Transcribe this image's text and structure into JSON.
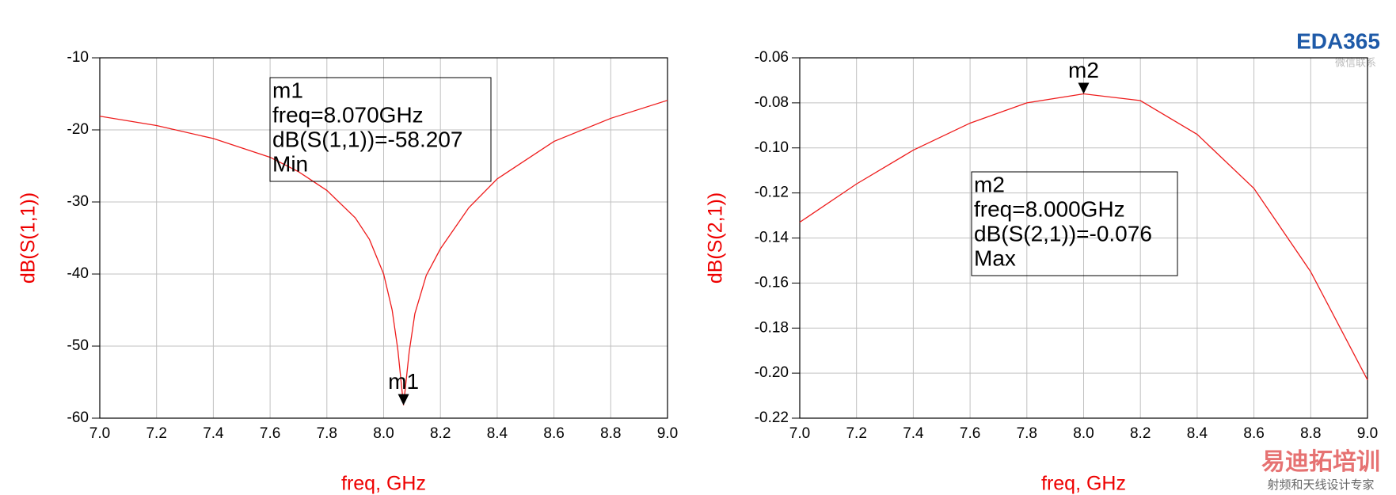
{
  "chart_data": [
    {
      "type": "line",
      "x_label": "freq, GHz",
      "y_label": "dB(S(1,1))",
      "grid": true,
      "xlim": [
        7.0,
        9.0
      ],
      "ylim": [
        -60,
        -10
      ],
      "xticks": [
        {
          "value": 7,
          "label": "7.0"
        },
        7.2,
        7.4,
        7.6,
        7.8,
        {
          "value": 8,
          "label": "8.0"
        },
        8.2,
        8.4,
        8.6,
        8.8,
        {
          "value": 9,
          "label": "9.0"
        }
      ],
      "yticks": [
        -60,
        -50,
        -40,
        -30,
        -20,
        -10
      ],
      "x": [
        7.0,
        7.2,
        7.4,
        7.6,
        7.7,
        7.8,
        7.9,
        7.95,
        8.0,
        8.03,
        8.05,
        8.07,
        8.09,
        8.11,
        8.15,
        8.2,
        8.3,
        8.4,
        8.6,
        8.8,
        9.0
      ],
      "series": [
        {
          "color": "#ee1c1c",
          "values": [
            -18.1,
            -19.4,
            -21.2,
            -23.8,
            -25.8,
            -28.4,
            -32.2,
            -35.2,
            -40.0,
            -45.0,
            -50.5,
            -58.2,
            -50.8,
            -45.5,
            -40.2,
            -36.5,
            -30.8,
            -26.8,
            -21.6,
            -18.4,
            -15.9
          ]
        }
      ],
      "marker": {
        "label": "m1",
        "x": 8.07,
        "y": -58.207,
        "lines": [
          "m1",
          "freq=8.070GHz",
          "dB(S(1,1))=-58.207",
          "Min"
        ]
      }
    },
    {
      "type": "line",
      "x_label": "freq, GHz",
      "y_label": "dB(S(2,1))",
      "grid": true,
      "xlim": [
        7.0,
        9.0
      ],
      "ylim": [
        -0.22,
        -0.06
      ],
      "xticks": [
        {
          "value": 7,
          "label": "7.0"
        },
        7.2,
        7.4,
        7.6,
        7.8,
        {
          "value": 8,
          "label": "8.0"
        },
        8.2,
        8.4,
        8.6,
        8.8,
        {
          "value": 9,
          "label": "9.0"
        }
      ],
      "yticks": [
        -0.22,
        {
          "value": -0.2,
          "label": "-0.20"
        },
        -0.18,
        -0.16,
        -0.14,
        -0.12,
        {
          "value": -0.1,
          "label": "-0.10"
        },
        -0.08,
        -0.06
      ],
      "x": [
        7.0,
        7.2,
        7.4,
        7.6,
        7.8,
        8.0,
        8.2,
        8.4,
        8.6,
        8.8,
        9.0
      ],
      "series": [
        {
          "color": "#ee1c1c",
          "values": [
            -0.133,
            -0.116,
            -0.101,
            -0.089,
            -0.08,
            -0.076,
            -0.079,
            -0.094,
            -0.118,
            -0.155,
            -0.203
          ]
        }
      ],
      "marker": {
        "label": "m2",
        "x": 8.0,
        "y": -0.076,
        "lines": [
          "m2",
          "freq=8.000GHz",
          "dB(S(2,1))=-0.076",
          "Max"
        ]
      }
    }
  ],
  "watermark": {
    "logo": "EDA365",
    "logo_sub": "微信联系",
    "brand": "易迪拓培训",
    "brand_sub": "射频和天线设计专家"
  }
}
